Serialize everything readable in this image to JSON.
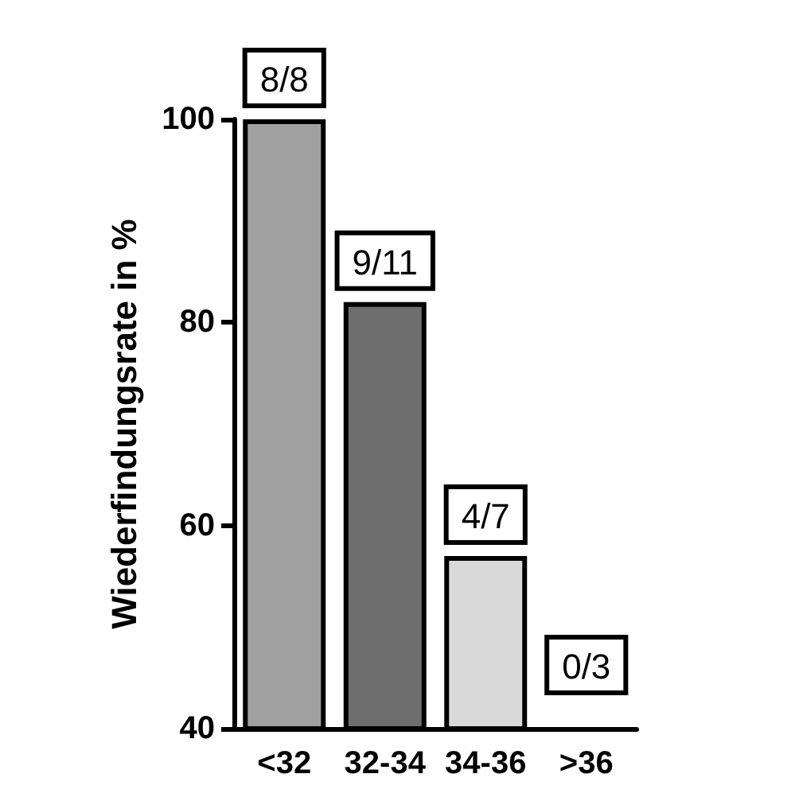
{
  "chart_data": {
    "type": "bar",
    "ylabel": "Wiederfindungsrate in %",
    "categories": [
      "<32",
      "32-34",
      "34-36",
      ">36"
    ],
    "values": [
      100,
      82,
      57,
      null
    ],
    "colors": [
      "#a0a0a0",
      "#6e6e6e",
      "#d9d9d9",
      "#ffffff"
    ],
    "annotations": [
      {
        "text": "8/8",
        "x": "<32",
        "y": 100
      },
      {
        "text": "9/11",
        "x": "32-34",
        "y": 82
      },
      {
        "text": "4/7",
        "x": "34-36",
        "y": 57
      },
      "0/3"
    ],
    "ylim": [
      40,
      100
    ],
    "yticks": [
      40,
      60,
      80,
      100
    ],
    "grid": false
  }
}
